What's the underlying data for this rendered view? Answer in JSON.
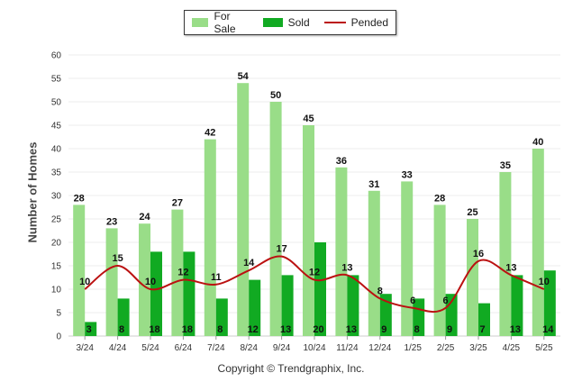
{
  "chart_data": {
    "type": "bar",
    "categories": [
      "3/24",
      "4/24",
      "5/24",
      "6/24",
      "7/24",
      "8/24",
      "9/24",
      "10/24",
      "11/24",
      "12/24",
      "1/25",
      "2/25",
      "3/25",
      "4/25",
      "5/25"
    ],
    "series": [
      {
        "name": "For Sale",
        "type": "bar",
        "color": "#99dd88",
        "values": [
          28,
          23,
          24,
          27,
          42,
          54,
          50,
          45,
          36,
          31,
          33,
          28,
          25,
          35,
          40
        ]
      },
      {
        "name": "Sold",
        "type": "bar",
        "color": "#11aa22",
        "values": [
          3,
          8,
          18,
          18,
          8,
          12,
          13,
          20,
          13,
          9,
          8,
          9,
          7,
          13,
          14
        ]
      },
      {
        "name": "Pended",
        "type": "line",
        "color": "#bb1111",
        "values": [
          10,
          15,
          10,
          12,
          11,
          14,
          17,
          12,
          13,
          8,
          6,
          6,
          16,
          13,
          10
        ]
      }
    ],
    "ylabel": "Number of Homes",
    "xlabel": "",
    "ylim": [
      0,
      60
    ],
    "yticks": [
      0,
      5,
      10,
      15,
      20,
      25,
      30,
      35,
      40,
      45,
      50,
      55,
      60
    ],
    "grid": true,
    "legend": "top-center"
  },
  "footer": {
    "copyright": "Copyright © Trendgraphix, Inc."
  }
}
